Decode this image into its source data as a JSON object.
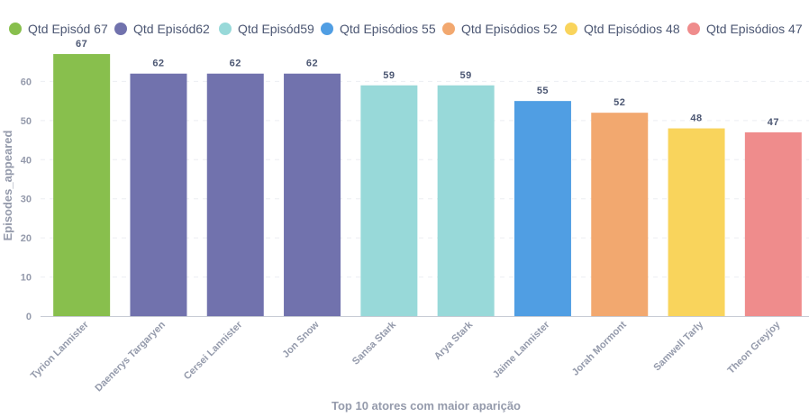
{
  "chart_data": {
    "type": "bar",
    "categories": [
      "Tyrion Lannister",
      "Daenerys Targaryen",
      "Cersei Lannister",
      "Jon Snow",
      "Sansa Stark",
      "Arya Stark",
      "Jaime Lannister",
      "Jorah Mormont",
      "Samwell Tarly",
      "Theon Greyjoy"
    ],
    "values": [
      67,
      62,
      62,
      62,
      59,
      59,
      55,
      52,
      48,
      47
    ],
    "colors": [
      "#88bf4d",
      "#7172ad",
      "#7172ad",
      "#7172ad",
      "#98d9d9",
      "#98d9d9",
      "#509ee3",
      "#f2a86f",
      "#f9d45c",
      "#ef8c8c"
    ],
    "legend": [
      {
        "label": "Qtd Episód 67",
        "color": "#88bf4d"
      },
      {
        "label": "Qtd Episód62",
        "color": "#7172ad"
      },
      {
        "label": "Qtd Episód59",
        "color": "#98d9d9"
      },
      {
        "label": "Qtd Episódios 55",
        "color": "#509ee3"
      },
      {
        "label": "Qtd Episódios 52",
        "color": "#f2a86f"
      },
      {
        "label": "Qtd Episódios 48",
        "color": "#f9d45c"
      },
      {
        "label": "Qtd Episódios 47",
        "color": "#ef8c8c"
      }
    ],
    "xlabel": "Top 10 atores com maior aparição",
    "ylabel": "Episodes_appeared",
    "ylim": [
      0,
      70
    ],
    "yticks": [
      0,
      10,
      20,
      30,
      40,
      50,
      60
    ],
    "grid": true,
    "legend_position": "top"
  }
}
